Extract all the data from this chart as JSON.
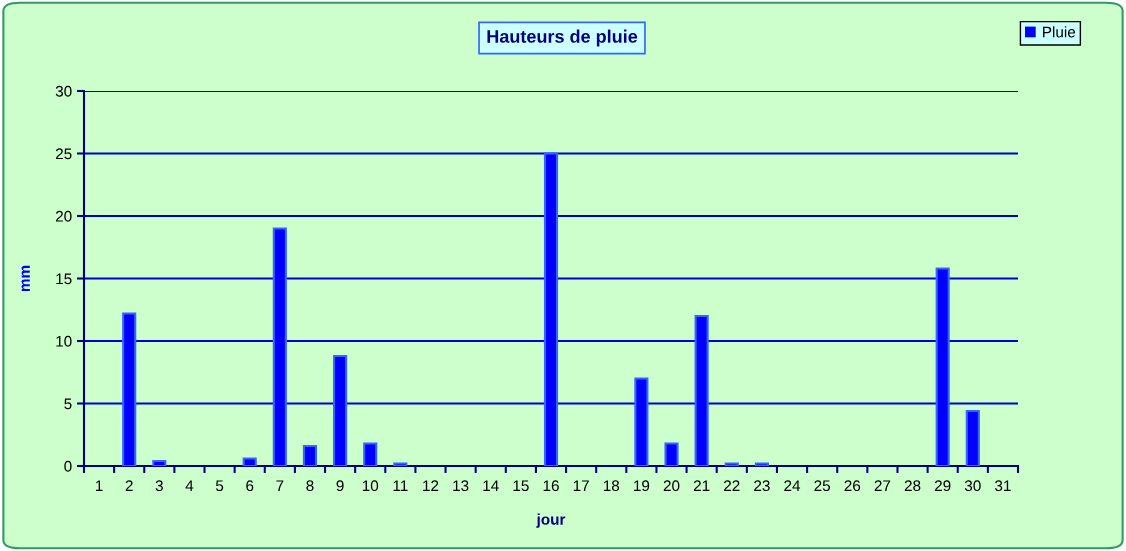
{
  "chart_data": {
    "type": "bar",
    "title": "Hauteurs de pluie",
    "xlabel": "jour",
    "ylabel": "mm",
    "categories": [
      "1",
      "2",
      "3",
      "4",
      "5",
      "6",
      "7",
      "8",
      "9",
      "10",
      "11",
      "12",
      "13",
      "14",
      "15",
      "16",
      "17",
      "18",
      "19",
      "20",
      "21",
      "22",
      "23",
      "24",
      "25",
      "26",
      "27",
      "28",
      "29",
      "30",
      "31"
    ],
    "series": [
      {
        "name": "Pluie",
        "color": "#0000ff",
        "values": [
          0,
          12.2,
          0.4,
          0,
          0,
          0.6,
          19.0,
          1.6,
          8.8,
          1.8,
          0.2,
          0,
          0,
          0,
          0,
          25.0,
          0,
          0,
          7.0,
          1.8,
          12.0,
          0.2,
          0.2,
          0,
          0,
          0,
          0,
          0,
          15.8,
          4.4,
          0
        ]
      }
    ],
    "ylim": [
      0,
      30
    ],
    "yticks": [
      0,
      5,
      10,
      15,
      20,
      25,
      30
    ],
    "grid": "y",
    "legend": "top right"
  }
}
